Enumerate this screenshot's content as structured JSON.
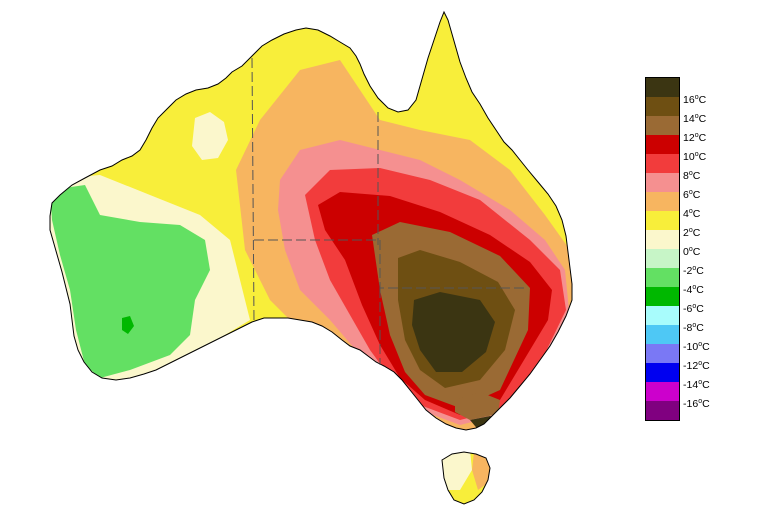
{
  "legend": {
    "items": [
      {
        "label": "16",
        "unit": "C",
        "color": "#3b3512"
      },
      {
        "label": "14",
        "unit": "C",
        "color": "#6e4f12"
      },
      {
        "label": "12",
        "unit": "C",
        "color": "#9a6a34"
      },
      {
        "label": "10",
        "unit": "C",
        "color": "#cc0000"
      },
      {
        "label": "8",
        "unit": "C",
        "color": "#f23c3c"
      },
      {
        "label": "6",
        "unit": "C",
        "color": "#f59090"
      },
      {
        "label": "4",
        "unit": "C",
        "color": "#f7b560"
      },
      {
        "label": "2",
        "unit": "C",
        "color": "#f8ee3a"
      },
      {
        "label": "0",
        "unit": "C",
        "color": "#fbf7cc"
      },
      {
        "label": "-2",
        "unit": "C",
        "color": "#c7f5c7"
      },
      {
        "label": "-4",
        "unit": "C",
        "color": "#63e063"
      },
      {
        "label": "-6",
        "unit": "C",
        "color": "#00b800"
      },
      {
        "label": "-8",
        "unit": "C",
        "color": "#a8fcfc"
      },
      {
        "label": "-10",
        "unit": "C",
        "color": "#4ec8f5"
      },
      {
        "label": "-12",
        "unit": "C",
        "color": "#7a78f5"
      },
      {
        "label": "-14",
        "unit": "C",
        "color": "#0000f0"
      },
      {
        "label": "-16",
        "unit": "C",
        "color": "#cc00cc"
      },
      {
        "label": "",
        "unit": "",
        "color": "#800080"
      }
    ]
  },
  "map": {
    "region": "Australia",
    "colors": {
      "ocean": "#ffffff",
      "coast": "#000000",
      "contour": "#222222"
    }
  }
}
